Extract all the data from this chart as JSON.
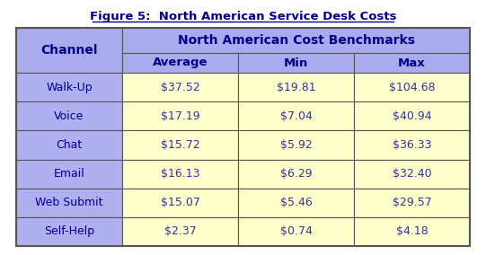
{
  "title": "Figure 5:  North American Service Desk Costs",
  "header_group": "North American Cost Benchmarks",
  "col_headers": [
    "Average",
    "Min",
    "Max"
  ],
  "row_label_header": "Channel",
  "channels": [
    "Walk-Up",
    "Voice",
    "Chat",
    "Email",
    "Web Submit",
    "Self-Help"
  ],
  "average": [
    "$37.52",
    "$17.19",
    "$15.72",
    "$16.13",
    "$15.07",
    "$2.37"
  ],
  "min": [
    "$19.81",
    "$7.04",
    "$5.92",
    "$6.29",
    "$5.46",
    "$0.74"
  ],
  "max": [
    "$104.68",
    "$40.94",
    "$36.33",
    "$32.40",
    "$29.57",
    "$4.18"
  ],
  "header_bg": "#aaaaee",
  "subheader_bg": "#aaaaee",
  "channel_bg": "#b0b0f0",
  "data_bg": "#ffffcc",
  "border_color": "#555555",
  "title_color": "#00008B",
  "header_text_color": "#00008B",
  "data_text_color": "#333399",
  "channel_text_color": "#00008B",
  "fig_bg": "#ffffff"
}
